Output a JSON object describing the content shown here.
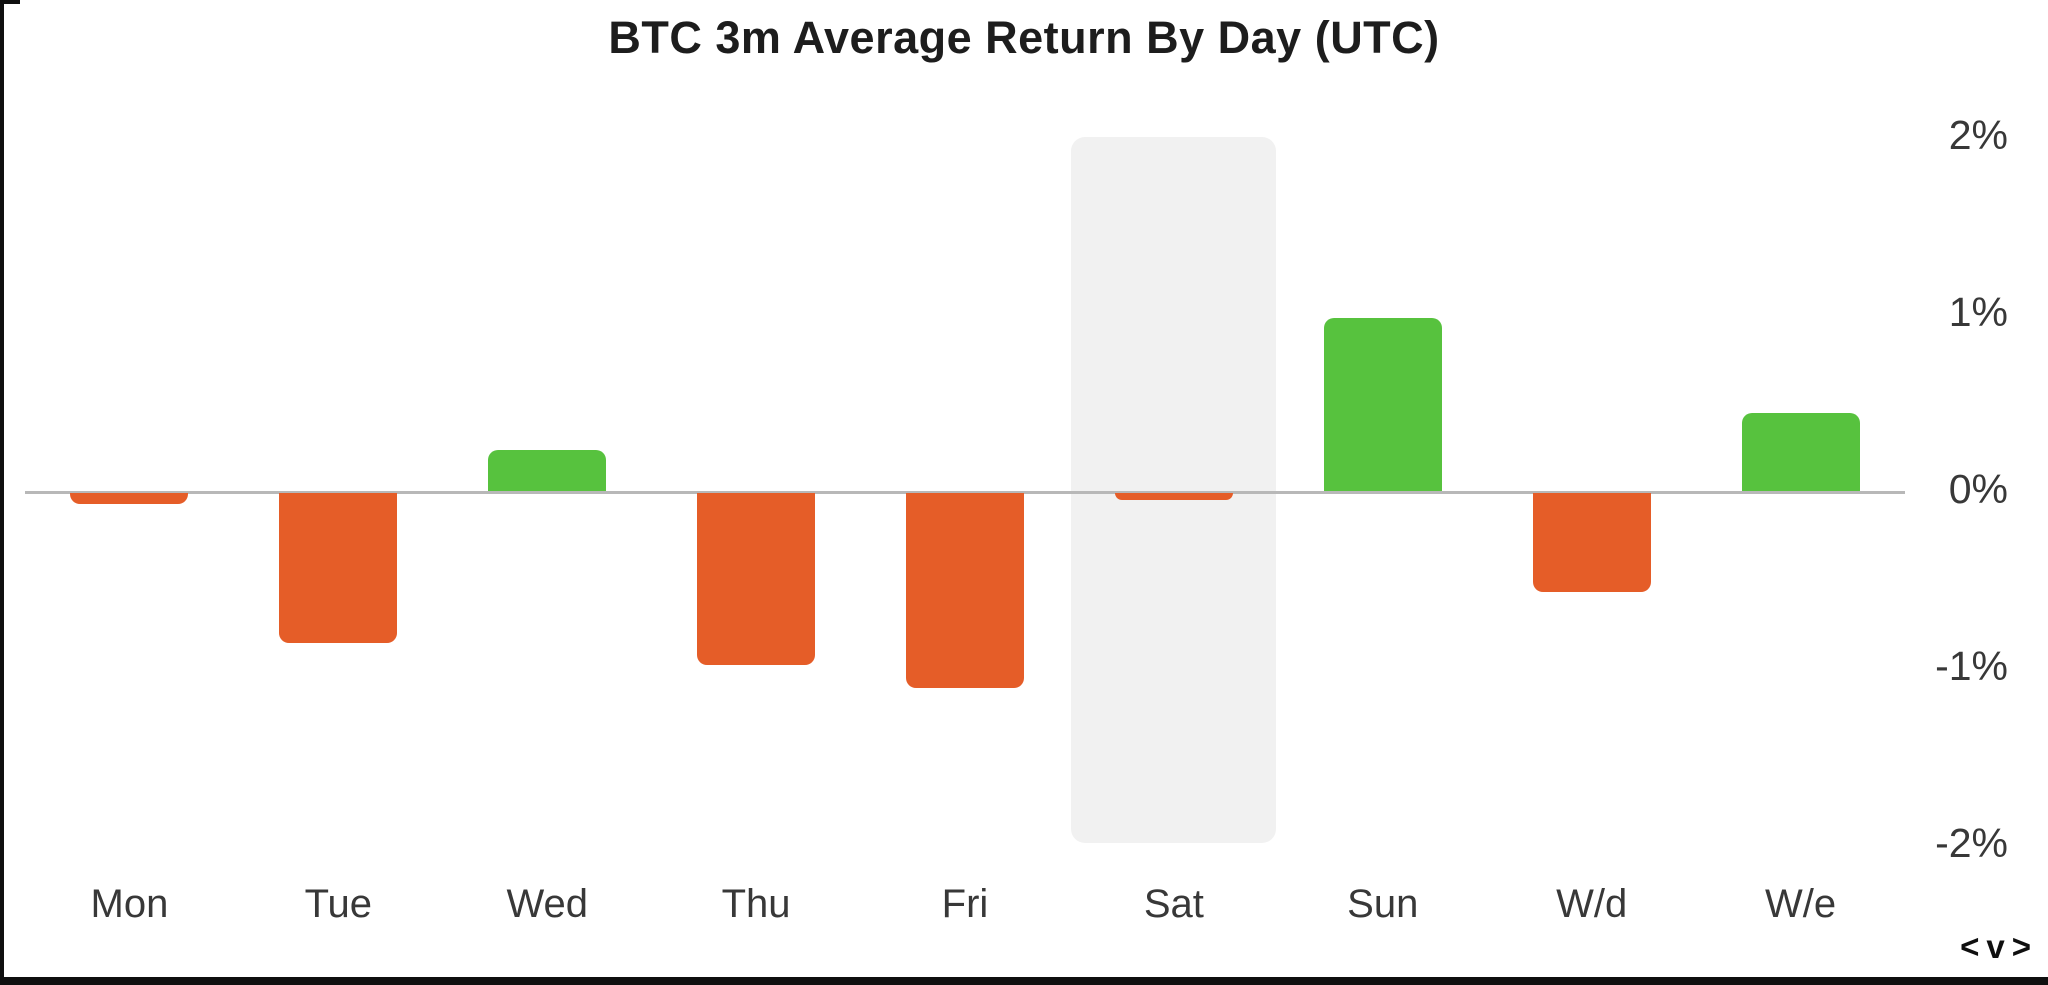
{
  "chart_data": {
    "type": "bar",
    "title": "BTC 3m Average Return By Day (UTC)",
    "categories": [
      "Mon",
      "Tue",
      "Wed",
      "Thu",
      "Fri",
      "Sat",
      "Sun",
      "W/d",
      "W/e"
    ],
    "values": [
      -0.06,
      -0.85,
      0.23,
      -0.97,
      -1.1,
      -0.04,
      0.98,
      -0.56,
      0.44
    ],
    "unit": "%",
    "ylabel": "",
    "xlabel": "",
    "y_ticks": [
      {
        "label": "2%",
        "value": 2
      },
      {
        "label": "1%",
        "value": 1
      },
      {
        "label": "0%",
        "value": 0
      },
      {
        "label": "-1%",
        "value": -1
      },
      {
        "label": "-2%",
        "value": -2
      }
    ],
    "ylim": [
      -2,
      2
    ],
    "grid": "none",
    "legend": "none",
    "y_axis_side": "right",
    "highlighted_category": "Sat"
  },
  "colors": {
    "positive_bar": "#57c23e",
    "negative_bar": "#e55d28",
    "highlight_band": "#f1f1f1",
    "axis_line": "#b8b8b8",
    "title_text": "#1d1d1d",
    "label_text": "#383838",
    "frame": "#0f0f0f"
  },
  "nav": {
    "prev": "<",
    "toggle": "v",
    "next": ">"
  }
}
